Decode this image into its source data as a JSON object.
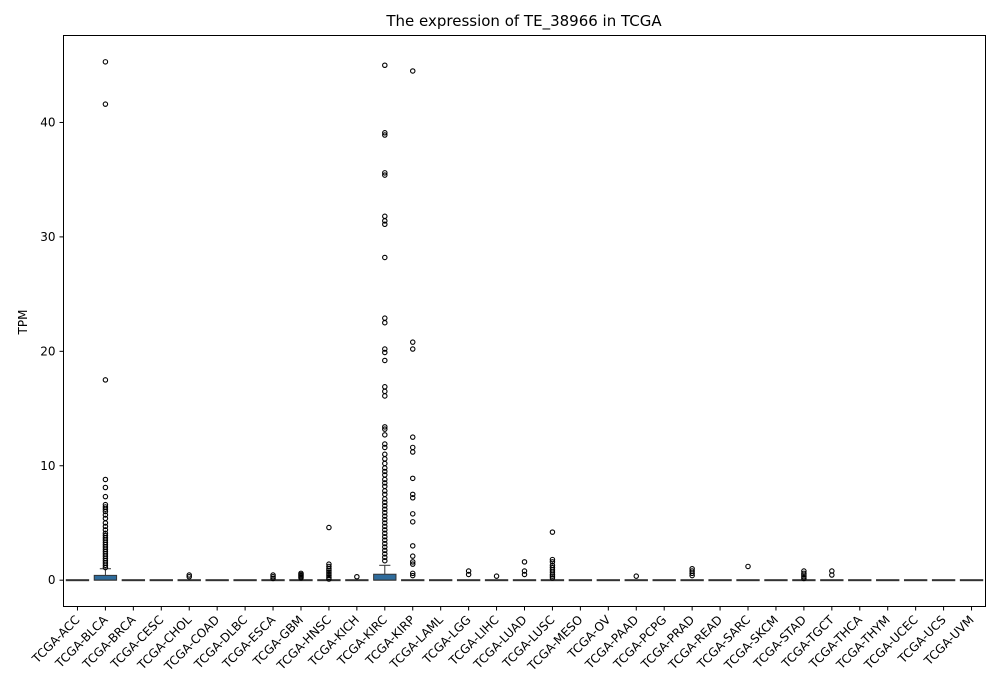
{
  "chart_data": {
    "type": "box",
    "title": "The expression of TE_38966 in TCGA",
    "xlabel": "",
    "ylabel": "TPM",
    "ylim": [
      -2.3,
      47.6
    ],
    "yticks": [
      0,
      10,
      20,
      30,
      40
    ],
    "grid": false,
    "box_color": "#2f6c9c",
    "categories": [
      "TCGA-ACC",
      "TCGA-BLCA",
      "TCGA-BRCA",
      "TCGA-CESC",
      "TCGA-CHOL",
      "TCGA-COAD",
      "TCGA-DLBC",
      "TCGA-ESCA",
      "TCGA-GBM",
      "TCGA-HNSC",
      "TCGA-KICH",
      "TCGA-KIRC",
      "TCGA-KIRP",
      "TCGA-LAML",
      "TCGA-LGG",
      "TCGA-LIHC",
      "TCGA-LUAD",
      "TCGA-LUSC",
      "TCGA-MESO",
      "TCGA-OV",
      "TCGA-PAAD",
      "TCGA-PCPG",
      "TCGA-PRAD",
      "TCGA-READ",
      "TCGA-SARC",
      "TCGA-SKCM",
      "TCGA-STAD",
      "TCGA-TGCT",
      "TCGA-THCA",
      "TCGA-THYM",
      "TCGA-UCEC",
      "TCGA-UCS",
      "TCGA-UVM"
    ],
    "series": [
      {
        "q1": 0,
        "median": 0,
        "q3": 0,
        "whisker_low": 0,
        "whisker_high": 0,
        "outliers": []
      },
      {
        "q1": 0,
        "median": 0,
        "q3": 0.42,
        "whisker_low": 0,
        "whisker_high": 1.0,
        "outliers": [
          45.3,
          41.6,
          17.5,
          8.8,
          8.1,
          7.3,
          6.6,
          6.4,
          6.2,
          6.0,
          5.7,
          5.4,
          5.0,
          4.7,
          4.4,
          4.1,
          3.9,
          3.7,
          3.5,
          3.3,
          3.1,
          2.9,
          2.7,
          2.5,
          2.3,
          2.1,
          1.9,
          1.7,
          1.5,
          1.3,
          1.1
        ]
      },
      {
        "q1": 0,
        "median": 0,
        "q3": 0,
        "whisker_low": 0,
        "whisker_high": 0,
        "outliers": []
      },
      {
        "q1": 0,
        "median": 0,
        "q3": 0,
        "whisker_low": 0,
        "whisker_high": 0,
        "outliers": []
      },
      {
        "q1": 0,
        "median": 0,
        "q3": 0,
        "whisker_low": 0,
        "whisker_high": 0,
        "outliers": [
          0.45,
          0.3
        ]
      },
      {
        "q1": 0,
        "median": 0,
        "q3": 0,
        "whisker_low": 0,
        "whisker_high": 0,
        "outliers": []
      },
      {
        "q1": 0,
        "median": 0,
        "q3": 0,
        "whisker_low": 0,
        "whisker_high": 0,
        "outliers": []
      },
      {
        "q1": 0,
        "median": 0,
        "q3": 0,
        "whisker_low": 0,
        "whisker_high": 0,
        "outliers": [
          0.45,
          0.3,
          0.15
        ]
      },
      {
        "q1": 0,
        "median": 0,
        "q3": 0,
        "whisker_low": 0,
        "whisker_high": 0,
        "outliers": [
          0.6,
          0.5,
          0.4,
          0.3,
          0.2
        ]
      },
      {
        "q1": 0,
        "median": 0,
        "q3": 0,
        "whisker_low": 0,
        "whisker_high": 0,
        "outliers": [
          4.6,
          1.4,
          1.2,
          1.0,
          0.85,
          0.7,
          0.55,
          0.4,
          0.25,
          0.1
        ]
      },
      {
        "q1": 0,
        "median": 0,
        "q3": 0,
        "whisker_low": 0,
        "whisker_high": 0,
        "outliers": [
          0.3
        ]
      },
      {
        "q1": 0,
        "median": 0,
        "q3": 0.52,
        "whisker_low": 0,
        "whisker_high": 1.3,
        "outliers": [
          45.0,
          39.1,
          38.9,
          35.6,
          35.4,
          31.8,
          31.4,
          31.1,
          28.2,
          22.9,
          22.5,
          20.2,
          19.9,
          19.2,
          16.9,
          16.5,
          16.1,
          13.4,
          13.2,
          12.7,
          11.9,
          11.6,
          11.0,
          10.6,
          10.2,
          9.8,
          9.5,
          9.2,
          8.8,
          8.5,
          8.2,
          7.8,
          7.5,
          7.1,
          6.8,
          6.5,
          6.2,
          5.9,
          5.6,
          5.3,
          5.0,
          4.7,
          4.4,
          4.1,
          3.8,
          3.5,
          3.2,
          2.9,
          2.6,
          2.3,
          2.0,
          1.7
        ]
      },
      {
        "q1": 0,
        "median": 0,
        "q3": 0,
        "whisker_low": 0,
        "whisker_high": 0,
        "outliers": [
          44.5,
          20.8,
          20.2,
          12.5,
          11.6,
          11.2,
          8.9,
          7.5,
          7.2,
          5.8,
          5.1,
          3.0,
          2.1,
          1.6,
          1.4,
          0.6,
          0.4
        ]
      },
      {
        "q1": 0,
        "median": 0,
        "q3": 0,
        "whisker_low": 0,
        "whisker_high": 0,
        "outliers": []
      },
      {
        "q1": 0,
        "median": 0,
        "q3": 0,
        "whisker_low": 0,
        "whisker_high": 0,
        "outliers": [
          0.8,
          0.5
        ]
      },
      {
        "q1": 0,
        "median": 0,
        "q3": 0,
        "whisker_low": 0,
        "whisker_high": 0,
        "outliers": [
          0.35
        ]
      },
      {
        "q1": 0,
        "median": 0,
        "q3": 0,
        "whisker_low": 0,
        "whisker_high": 0,
        "outliers": [
          1.6,
          0.8,
          0.5
        ]
      },
      {
        "q1": 0,
        "median": 0,
        "q3": 0,
        "whisker_low": 0,
        "whisker_high": 0,
        "outliers": [
          4.2,
          1.8,
          1.6,
          1.3,
          1.1,
          0.9,
          0.7,
          0.5,
          0.35,
          0.2
        ]
      },
      {
        "q1": 0,
        "median": 0,
        "q3": 0,
        "whisker_low": 0,
        "whisker_high": 0,
        "outliers": []
      },
      {
        "q1": 0,
        "median": 0,
        "q3": 0,
        "whisker_low": 0,
        "whisker_high": 0,
        "outliers": []
      },
      {
        "q1": 0,
        "median": 0,
        "q3": 0,
        "whisker_low": 0,
        "whisker_high": 0,
        "outliers": [
          0.35
        ]
      },
      {
        "q1": 0,
        "median": 0,
        "q3": 0,
        "whisker_low": 0,
        "whisker_high": 0,
        "outliers": []
      },
      {
        "q1": 0,
        "median": 0,
        "q3": 0,
        "whisker_low": 0,
        "whisker_high": 0,
        "outliers": [
          1.0,
          0.8,
          0.6,
          0.4
        ]
      },
      {
        "q1": 0,
        "median": 0,
        "q3": 0,
        "whisker_low": 0,
        "whisker_high": 0,
        "outliers": []
      },
      {
        "q1": 0,
        "median": 0,
        "q3": 0,
        "whisker_low": 0,
        "whisker_high": 0,
        "outliers": [
          1.2
        ]
      },
      {
        "q1": 0,
        "median": 0,
        "q3": 0,
        "whisker_low": 0,
        "whisker_high": 0,
        "outliers": []
      },
      {
        "q1": 0,
        "median": 0,
        "q3": 0,
        "whisker_low": 0,
        "whisker_high": 0,
        "outliers": [
          0.8,
          0.6,
          0.45,
          0.3,
          0.15
        ]
      },
      {
        "q1": 0,
        "median": 0,
        "q3": 0,
        "whisker_low": 0,
        "whisker_high": 0,
        "outliers": [
          0.8,
          0.45
        ]
      },
      {
        "q1": 0,
        "median": 0,
        "q3": 0,
        "whisker_low": 0,
        "whisker_high": 0,
        "outliers": []
      },
      {
        "q1": 0,
        "median": 0,
        "q3": 0,
        "whisker_low": 0,
        "whisker_high": 0,
        "outliers": []
      },
      {
        "q1": 0,
        "median": 0,
        "q3": 0,
        "whisker_low": 0,
        "whisker_high": 0,
        "outliers": []
      },
      {
        "q1": 0,
        "median": 0,
        "q3": 0,
        "whisker_low": 0,
        "whisker_high": 0,
        "outliers": []
      },
      {
        "q1": 0,
        "median": 0,
        "q3": 0,
        "whisker_low": 0,
        "whisker_high": 0,
        "outliers": []
      }
    ]
  }
}
